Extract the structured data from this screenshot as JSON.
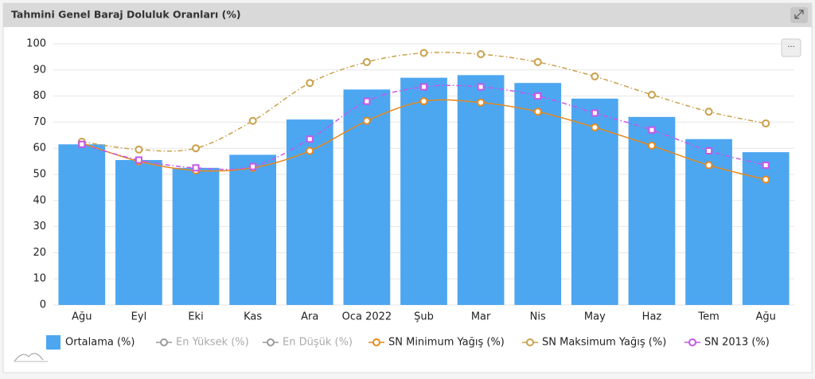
{
  "chart_data": {
    "type": "bar-line",
    "title": "Tahmini Genel Baraj Doluluk Oranları (%)",
    "categories": [
      "Ağu",
      "Eyl",
      "Eki",
      "Kas",
      "Ara",
      "Oca 2022",
      "Şub",
      "Mar",
      "Nis",
      "May",
      "Haz",
      "Tem",
      "Ağu"
    ],
    "ylim": [
      0,
      100
    ],
    "yticks": [
      0,
      10,
      20,
      30,
      40,
      50,
      60,
      70,
      80,
      90,
      100
    ],
    "grid": true,
    "series": [
      {
        "name": "Ortalama (%)",
        "kind": "bar",
        "color": "#4da6f0",
        "values": [
          61.5,
          55.5,
          52.5,
          57.5,
          71,
          82.5,
          87,
          88,
          85,
          79,
          72,
          63.5,
          58.5
        ]
      },
      {
        "name": "En Yüksek (%)",
        "kind": "line",
        "hidden": true,
        "color": "#9a9a9a",
        "values": [
          null,
          null,
          null,
          null,
          null,
          null,
          null,
          null,
          null,
          null,
          null,
          null,
          null
        ]
      },
      {
        "name": "En Düşük (%)",
        "kind": "line",
        "hidden": true,
        "color": "#9a9a9a",
        "values": [
          null,
          null,
          null,
          null,
          null,
          null,
          null,
          null,
          null,
          null,
          null,
          null,
          null
        ]
      },
      {
        "name": "SN Minimum Yağış (%)",
        "kind": "line",
        "color": "#e58a1f",
        "dash": "solid",
        "values": [
          62,
          55,
          51.5,
          52.5,
          59,
          70.5,
          78,
          77.5,
          74,
          68,
          61,
          53.5,
          48
        ]
      },
      {
        "name": "SN Maksimum Yağış (%)",
        "kind": "line",
        "color": "#c9a04a",
        "dash": "dashdot",
        "values": [
          62.5,
          59.5,
          60,
          70.5,
          85,
          93,
          96.5,
          96,
          93,
          87.5,
          80.5,
          74,
          69.5
        ]
      },
      {
        "name": "SN 2013 (%)",
        "kind": "line",
        "color": "#c657e8",
        "dash": "dashdot",
        "values": [
          61.5,
          55.5,
          52.5,
          53,
          63.5,
          78,
          83.5,
          83.5,
          80,
          73.5,
          67,
          59,
          53.5
        ]
      }
    ]
  }
}
